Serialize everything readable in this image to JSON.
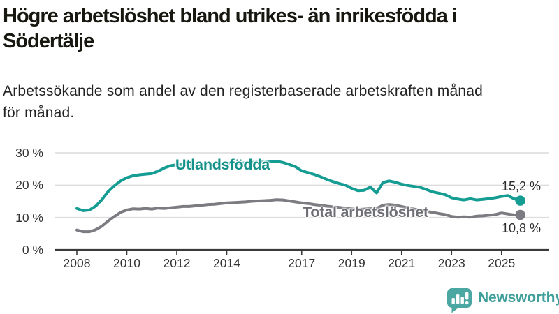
{
  "chart_data": {
    "type": "line",
    "title": "Högre arbetslöshet bland utrikes- än inrikesfödda i\nSödertälje",
    "subtitle": "Arbetssökande som andel av den registerbaserade arbetskraften månad\nför månad.",
    "grid": "horizontal",
    "legend": "direct-labels-on-lines",
    "x_axis": {
      "range": [
        2008,
        2025.75
      ],
      "ticks": [
        {
          "value": 2008,
          "label": "2008"
        },
        {
          "value": 2010,
          "label": "2010"
        },
        {
          "value": 2012,
          "label": "2012"
        },
        {
          "value": 2014,
          "label": "2014"
        },
        {
          "value": 2017,
          "label": "2017"
        },
        {
          "value": 2019,
          "label": "2019"
        },
        {
          "value": 2021,
          "label": "2021"
        },
        {
          "value": 2023,
          "label": "2023"
        },
        {
          "value": 2025,
          "label": "2025"
        }
      ]
    },
    "y_axis": {
      "range": [
        0,
        30
      ],
      "unit": "%",
      "ticks": [
        {
          "value": 30,
          "label": "30 %"
        },
        {
          "value": 20,
          "label": "20 %"
        },
        {
          "value": 10,
          "label": "10 %"
        },
        {
          "value": 0,
          "label": "0 %"
        }
      ]
    },
    "x": [
      2008,
      2008.25,
      2008.5,
      2008.75,
      2009,
      2009.25,
      2009.5,
      2009.75,
      2010,
      2010.25,
      2010.5,
      2010.75,
      2011,
      2011.25,
      2011.5,
      2011.75,
      2012,
      2012.25,
      2012.5,
      2012.75,
      2013,
      2013.25,
      2013.5,
      2013.75,
      2014,
      2014.25,
      2014.5,
      2014.75,
      2015,
      2015.25,
      2015.5,
      2015.75,
      2016,
      2016.25,
      2016.5,
      2016.75,
      2017,
      2017.25,
      2017.5,
      2017.75,
      2018,
      2018.25,
      2018.5,
      2018.75,
      2019,
      2019.25,
      2019.5,
      2019.75,
      2020,
      2020.25,
      2020.5,
      2020.75,
      2021,
      2021.25,
      2021.5,
      2021.75,
      2022,
      2022.25,
      2022.5,
      2022.75,
      2023,
      2023.25,
      2023.5,
      2023.75,
      2024,
      2024.25,
      2024.5,
      2024.75,
      2025,
      2025.25,
      2025.5,
      2025.75
    ],
    "series": [
      {
        "name": "Utlandsfödda",
        "color": "#159c93",
        "label_color": "#149189",
        "end_label": "15,2 %",
        "end_value": 15.2,
        "values": [
          12.8,
          12.1,
          12.3,
          13.5,
          15.5,
          18.0,
          19.8,
          21.3,
          22.3,
          22.9,
          23.2,
          23.4,
          23.6,
          24.3,
          25.3,
          26.0,
          26.3,
          26.4,
          26.2,
          26.1,
          26.3,
          26.5,
          26.4,
          26.6,
          26.6,
          26.8,
          26.7,
          26.9,
          27.0,
          27.2,
          27.1,
          27.3,
          27.4,
          27.0,
          26.4,
          25.7,
          24.4,
          23.9,
          23.3,
          22.6,
          21.8,
          21.1,
          20.5,
          20.0,
          19.0,
          18.3,
          18.4,
          19.4,
          17.6,
          20.8,
          21.3,
          20.9,
          20.3,
          19.9,
          19.6,
          19.3,
          18.6,
          17.9,
          17.5,
          17.0,
          16.1,
          15.7,
          15.4,
          15.8,
          15.4,
          15.6,
          15.8,
          16.1,
          16.5,
          16.8,
          15.8,
          15.2
        ]
      },
      {
        "name": "Total arbetslöshet",
        "color": "#7b7b81",
        "label_color": "#6f6f76",
        "end_label": "10,8 %",
        "end_value": 10.8,
        "values": [
          6.1,
          5.6,
          5.6,
          6.2,
          7.3,
          8.9,
          10.3,
          11.6,
          12.3,
          12.7,
          12.6,
          12.8,
          12.6,
          12.9,
          12.8,
          13.0,
          13.2,
          13.4,
          13.4,
          13.6,
          13.8,
          14.0,
          14.1,
          14.3,
          14.5,
          14.6,
          14.7,
          14.8,
          15.0,
          15.1,
          15.2,
          15.3,
          15.5,
          15.4,
          15.1,
          14.8,
          14.5,
          14.3,
          14.0,
          13.8,
          13.5,
          13.3,
          13.1,
          12.9,
          12.7,
          12.5,
          12.6,
          12.8,
          12.8,
          13.8,
          14.0,
          13.8,
          13.4,
          13.0,
          12.6,
          12.2,
          11.9,
          11.6,
          11.2,
          10.9,
          10.3,
          10.1,
          10.2,
          10.1,
          10.4,
          10.5,
          10.7,
          10.9,
          11.4,
          11.1,
          10.8,
          10.8
        ]
      }
    ]
  },
  "footer": {
    "brand": "Newsworthy",
    "logo": "newsworthy-speech-bubble-bar-chart-icon",
    "brand_color": "#3e9e99",
    "logo_color": "#4ba7a1"
  }
}
